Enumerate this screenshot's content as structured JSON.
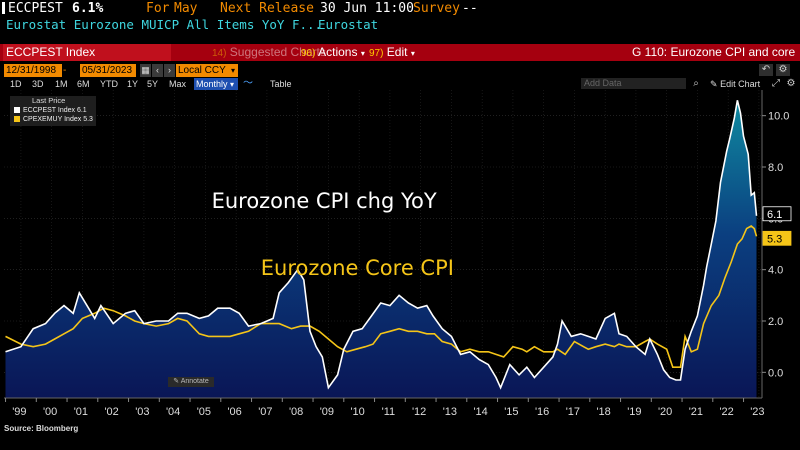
{
  "header": {
    "ticker": "ECCPEST",
    "last_value": "6.1%",
    "for_label": "For",
    "for_period": "May",
    "next_release_label": "Next Release",
    "next_release_value": "30 Jun 11:00",
    "survey_label": "Survey",
    "survey_value": "--",
    "description": "Eurostat Eurozone MUICP All Items YoY F...",
    "source_name": "Eurostat"
  },
  "command_bar": {
    "index_name": "ECCPEST Index",
    "suggested_num": "14)",
    "suggested_label": "Suggested Charts",
    "actions_num": "96)",
    "actions_label": "Actions",
    "edit_num": "97)",
    "edit_label": "Edit",
    "chart_title": "G 110: Eurozone CPI and core"
  },
  "controls": {
    "start_date": "12/31/1998",
    "end_date": "05/31/2023",
    "currency": "Local CCY",
    "add_data_placeholder": "Add Data",
    "ranges": [
      "1D",
      "3D",
      "1M",
      "6M",
      "YTD",
      "1Y",
      "5Y",
      "Max"
    ],
    "frequency": "Monthly",
    "table_label": "Table",
    "edit_chart_label": "Edit Chart"
  },
  "legend": {
    "title": "Last Price",
    "items": [
      {
        "label": "ECCPEST Index",
        "value": "6.1",
        "color": "#ffffff"
      },
      {
        "label": "CPEXEMUY Index",
        "value": "5.3",
        "color": "#f5c518"
      }
    ]
  },
  "annotate_label": "Annotate",
  "source_note": "Source: Bloomberg",
  "colors": {
    "headline": "#ffffff",
    "core": "#f5c518",
    "area_top": "#0e7f95",
    "area_bottom": "#0a1a60",
    "brand_red": "#a5000f",
    "amber": "#f28a00"
  },
  "chart_data": {
    "type": "line",
    "title": "",
    "xlabel": "",
    "ylabel": "",
    "ylim": [
      -1.0,
      11.0
    ],
    "yticks": [
      "10.0",
      "8.0",
      "6.0",
      "4.0",
      "2.0",
      "0.0"
    ],
    "ytick_values": [
      10,
      8,
      6,
      4,
      2,
      0
    ],
    "xticks": [
      "'99",
      "'00",
      "'01",
      "'02",
      "'03",
      "'04",
      "'05",
      "'06",
      "'07",
      "'08",
      "'09",
      "'10",
      "'11",
      "'12",
      "'13",
      "'14",
      "'15",
      "'16",
      "'17",
      "'18",
      "'19",
      "'20",
      "'21",
      "'22",
      "'23"
    ],
    "xtick_years": [
      1999,
      2000,
      2001,
      2002,
      2003,
      2004,
      2005,
      2006,
      2007,
      2008,
      2009,
      2010,
      2011,
      2012,
      2013,
      2014,
      2015,
      2016,
      2017,
      2018,
      2019,
      2020,
      2021,
      2022,
      2023
    ],
    "xlim": [
      1998.95,
      2023.6
    ],
    "annotations": [
      {
        "text": "Eurozone CPI chg YoY",
        "color": "#ffffff",
        "at": [
          2005.7,
          6.4
        ]
      },
      {
        "text": "Eurozone Core CPI",
        "color": "#f5c518",
        "at": [
          2007.3,
          3.8
        ]
      }
    ],
    "series": [
      {
        "name": "Eurozone CPI chg YoY",
        "ticker": "ECCPEST Index",
        "last": "6.1",
        "points": [
          [
            1999.0,
            0.8
          ],
          [
            1999.5,
            1.0
          ],
          [
            1999.9,
            1.7
          ],
          [
            2000.3,
            1.9
          ],
          [
            2000.6,
            2.3
          ],
          [
            2000.9,
            2.6
          ],
          [
            2001.2,
            2.3
          ],
          [
            2001.4,
            3.1
          ],
          [
            2001.7,
            2.5
          ],
          [
            2001.9,
            2.1
          ],
          [
            2002.1,
            2.6
          ],
          [
            2002.5,
            1.9
          ],
          [
            2002.9,
            2.3
          ],
          [
            2003.2,
            2.4
          ],
          [
            2003.5,
            1.9
          ],
          [
            2003.9,
            2.0
          ],
          [
            2004.3,
            2.0
          ],
          [
            2004.6,
            2.3
          ],
          [
            2004.9,
            2.3
          ],
          [
            2005.3,
            2.1
          ],
          [
            2005.6,
            2.2
          ],
          [
            2005.9,
            2.5
          ],
          [
            2006.3,
            2.5
          ],
          [
            2006.6,
            2.3
          ],
          [
            2006.9,
            1.8
          ],
          [
            2007.3,
            1.9
          ],
          [
            2007.7,
            2.1
          ],
          [
            2007.9,
            3.1
          ],
          [
            2008.2,
            3.5
          ],
          [
            2008.5,
            4.0
          ],
          [
            2008.7,
            3.6
          ],
          [
            2008.9,
            1.6
          ],
          [
            2009.1,
            1.0
          ],
          [
            2009.3,
            0.6
          ],
          [
            2009.5,
            -0.6
          ],
          [
            2009.8,
            -0.1
          ],
          [
            2010.0,
            0.9
          ],
          [
            2010.3,
            1.6
          ],
          [
            2010.6,
            1.7
          ],
          [
            2010.9,
            2.2
          ],
          [
            2011.2,
            2.7
          ],
          [
            2011.5,
            2.6
          ],
          [
            2011.8,
            3.0
          ],
          [
            2012.1,
            2.7
          ],
          [
            2012.4,
            2.5
          ],
          [
            2012.7,
            2.6
          ],
          [
            2012.9,
            2.2
          ],
          [
            2013.2,
            1.7
          ],
          [
            2013.5,
            1.4
          ],
          [
            2013.8,
            0.7
          ],
          [
            2014.1,
            0.8
          ],
          [
            2014.4,
            0.5
          ],
          [
            2014.7,
            0.3
          ],
          [
            2014.95,
            -0.2
          ],
          [
            2015.1,
            -0.6
          ],
          [
            2015.4,
            0.3
          ],
          [
            2015.7,
            -0.1
          ],
          [
            2015.95,
            0.2
          ],
          [
            2016.2,
            -0.2
          ],
          [
            2016.5,
            0.2
          ],
          [
            2016.8,
            0.6
          ],
          [
            2016.95,
            1.1
          ],
          [
            2017.1,
            2.0
          ],
          [
            2017.4,
            1.4
          ],
          [
            2017.7,
            1.5
          ],
          [
            2017.95,
            1.4
          ],
          [
            2018.2,
            1.3
          ],
          [
            2018.5,
            2.1
          ],
          [
            2018.8,
            2.3
          ],
          [
            2018.95,
            1.5
          ],
          [
            2019.2,
            1.4
          ],
          [
            2019.5,
            1.0
          ],
          [
            2019.8,
            0.7
          ],
          [
            2019.95,
            1.3
          ],
          [
            2020.2,
            0.7
          ],
          [
            2020.4,
            0.1
          ],
          [
            2020.6,
            -0.2
          ],
          [
            2020.8,
            -0.3
          ],
          [
            2020.95,
            -0.3
          ],
          [
            2021.1,
            0.9
          ],
          [
            2021.3,
            1.6
          ],
          [
            2021.5,
            2.2
          ],
          [
            2021.7,
            3.4
          ],
          [
            2021.8,
            4.1
          ],
          [
            2021.95,
            5.0
          ],
          [
            2022.1,
            5.9
          ],
          [
            2022.25,
            7.4
          ],
          [
            2022.45,
            8.6
          ],
          [
            2022.55,
            9.1
          ],
          [
            2022.7,
            9.9
          ],
          [
            2022.8,
            10.6
          ],
          [
            2022.9,
            10.1
          ],
          [
            2023.0,
            9.2
          ],
          [
            2023.15,
            8.5
          ],
          [
            2023.25,
            6.9
          ],
          [
            2023.35,
            7.0
          ],
          [
            2023.42,
            6.1
          ]
        ]
      },
      {
        "name": "Eurozone Core CPI",
        "ticker": "CPEXEMUY Index",
        "last": "5.3",
        "points": [
          [
            1999.0,
            1.4
          ],
          [
            1999.5,
            1.1
          ],
          [
            1999.9,
            1.0
          ],
          [
            2000.3,
            1.1
          ],
          [
            2000.6,
            1.3
          ],
          [
            2000.9,
            1.5
          ],
          [
            2001.2,
            1.7
          ],
          [
            2001.5,
            2.1
          ],
          [
            2001.9,
            2.3
          ],
          [
            2002.2,
            2.5
          ],
          [
            2002.5,
            2.4
          ],
          [
            2002.9,
            2.2
          ],
          [
            2003.2,
            2.0
          ],
          [
            2003.5,
            1.9
          ],
          [
            2003.9,
            1.8
          ],
          [
            2004.3,
            1.9
          ],
          [
            2004.6,
            2.1
          ],
          [
            2004.9,
            2.0
          ],
          [
            2005.3,
            1.5
          ],
          [
            2005.6,
            1.4
          ],
          [
            2005.9,
            1.4
          ],
          [
            2006.3,
            1.4
          ],
          [
            2006.6,
            1.5
          ],
          [
            2006.9,
            1.6
          ],
          [
            2007.3,
            1.9
          ],
          [
            2007.7,
            1.9
          ],
          [
            2007.9,
            1.9
          ],
          [
            2008.3,
            1.7
          ],
          [
            2008.6,
            1.8
          ],
          [
            2008.9,
            1.8
          ],
          [
            2009.2,
            1.6
          ],
          [
            2009.5,
            1.3
          ],
          [
            2009.8,
            1.0
          ],
          [
            2010.1,
            0.8
          ],
          [
            2010.4,
            0.9
          ],
          [
            2010.7,
            1.0
          ],
          [
            2010.95,
            1.1
          ],
          [
            2011.2,
            1.5
          ],
          [
            2011.5,
            1.6
          ],
          [
            2011.8,
            1.7
          ],
          [
            2012.1,
            1.6
          ],
          [
            2012.4,
            1.6
          ],
          [
            2012.7,
            1.5
          ],
          [
            2012.95,
            1.5
          ],
          [
            2013.2,
            1.2
          ],
          [
            2013.5,
            1.1
          ],
          [
            2013.8,
            0.8
          ],
          [
            2014.1,
            0.9
          ],
          [
            2014.4,
            0.8
          ],
          [
            2014.7,
            0.8
          ],
          [
            2014.95,
            0.7
          ],
          [
            2015.2,
            0.6
          ],
          [
            2015.5,
            1.0
          ],
          [
            2015.8,
            0.9
          ],
          [
            2015.95,
            0.8
          ],
          [
            2016.2,
            1.0
          ],
          [
            2016.5,
            0.8
          ],
          [
            2016.8,
            0.8
          ],
          [
            2016.95,
            0.9
          ],
          [
            2017.2,
            0.7
          ],
          [
            2017.5,
            1.2
          ],
          [
            2017.8,
            1.0
          ],
          [
            2017.95,
            0.9
          ],
          [
            2018.2,
            1.0
          ],
          [
            2018.5,
            1.1
          ],
          [
            2018.8,
            1.0
          ],
          [
            2018.95,
            1.1
          ],
          [
            2019.2,
            1.0
          ],
          [
            2019.5,
            1.0
          ],
          [
            2019.8,
            1.2
          ],
          [
            2019.95,
            1.3
          ],
          [
            2020.2,
            1.1
          ],
          [
            2020.5,
            0.9
          ],
          [
            2020.7,
            0.2
          ],
          [
            2020.95,
            0.2
          ],
          [
            2021.1,
            1.4
          ],
          [
            2021.3,
            0.8
          ],
          [
            2021.5,
            0.9
          ],
          [
            2021.7,
            1.9
          ],
          [
            2021.95,
            2.6
          ],
          [
            2022.2,
            3.0
          ],
          [
            2022.4,
            3.7
          ],
          [
            2022.6,
            4.3
          ],
          [
            2022.8,
            5.0
          ],
          [
            2022.95,
            5.2
          ],
          [
            2023.1,
            5.6
          ],
          [
            2023.25,
            5.7
          ],
          [
            2023.35,
            5.6
          ],
          [
            2023.42,
            5.3
          ]
        ]
      }
    ]
  }
}
